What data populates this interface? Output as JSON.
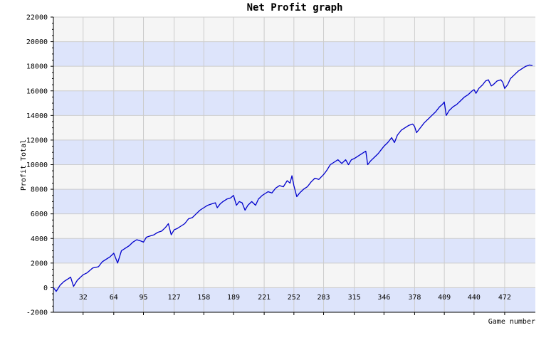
{
  "colors": {
    "band_a": "#dde4fb",
    "band_b": "#f5f5f5",
    "line": "#0000cc",
    "axis": "#000000",
    "grid": "#cccccc"
  },
  "chart_data": {
    "type": "line",
    "title": "Net Profit graph",
    "xlabel": "Game number",
    "ylabel": "Profit Total",
    "xlim": [
      1,
      504
    ],
    "ylim": [
      -2000,
      22000
    ],
    "x_ticks": [
      32,
      64,
      95,
      127,
      158,
      189,
      221,
      252,
      283,
      315,
      346,
      378,
      409,
      440,
      472
    ],
    "y_ticks": [
      -2000,
      0,
      2000,
      4000,
      6000,
      8000,
      10000,
      12000,
      14000,
      16000,
      18000,
      20000,
      22000
    ],
    "grid": true,
    "legend": "none",
    "series": [
      {
        "points": [
          [
            1,
            0
          ],
          [
            4,
            -300
          ],
          [
            8,
            200
          ],
          [
            12,
            500
          ],
          [
            16,
            700
          ],
          [
            19,
            850
          ],
          [
            22,
            100
          ],
          [
            26,
            600
          ],
          [
            32,
            1050
          ],
          [
            36,
            1200
          ],
          [
            42,
            1600
          ],
          [
            48,
            1700
          ],
          [
            52,
            2100
          ],
          [
            56,
            2300
          ],
          [
            60,
            2500
          ],
          [
            64,
            2800
          ],
          [
            68,
            2000
          ],
          [
            72,
            3000
          ],
          [
            76,
            3200
          ],
          [
            80,
            3400
          ],
          [
            84,
            3700
          ],
          [
            88,
            3900
          ],
          [
            92,
            3800
          ],
          [
            95,
            3700
          ],
          [
            98,
            4100
          ],
          [
            102,
            4200
          ],
          [
            106,
            4300
          ],
          [
            110,
            4500
          ],
          [
            114,
            4600
          ],
          [
            118,
            4900
          ],
          [
            121,
            5200
          ],
          [
            124,
            4300
          ],
          [
            127,
            4700
          ],
          [
            130,
            4800
          ],
          [
            134,
            5000
          ],
          [
            138,
            5200
          ],
          [
            142,
            5600
          ],
          [
            146,
            5700
          ],
          [
            150,
            6000
          ],
          [
            154,
            6300
          ],
          [
            158,
            6500
          ],
          [
            162,
            6700
          ],
          [
            166,
            6800
          ],
          [
            170,
            6900
          ],
          [
            172,
            6500
          ],
          [
            175,
            6800
          ],
          [
            178,
            7000
          ],
          [
            182,
            7200
          ],
          [
            186,
            7300
          ],
          [
            189,
            7500
          ],
          [
            192,
            6700
          ],
          [
            195,
            7000
          ],
          [
            198,
            6900
          ],
          [
            201,
            6300
          ],
          [
            204,
            6700
          ],
          [
            208,
            7000
          ],
          [
            212,
            6700
          ],
          [
            215,
            7200
          ],
          [
            219,
            7500
          ],
          [
            221,
            7600
          ],
          [
            225,
            7800
          ],
          [
            229,
            7700
          ],
          [
            233,
            8100
          ],
          [
            237,
            8300
          ],
          [
            241,
            8200
          ],
          [
            245,
            8700
          ],
          [
            248,
            8500
          ],
          [
            250,
            9100
          ],
          [
            252,
            8300
          ],
          [
            255,
            7400
          ],
          [
            258,
            7700
          ],
          [
            262,
            8000
          ],
          [
            266,
            8200
          ],
          [
            270,
            8600
          ],
          [
            274,
            8900
          ],
          [
            278,
            8800
          ],
          [
            283,
            9200
          ],
          [
            286,
            9500
          ],
          [
            290,
            10000
          ],
          [
            294,
            10200
          ],
          [
            298,
            10400
          ],
          [
            302,
            10100
          ],
          [
            306,
            10400
          ],
          [
            309,
            10000
          ],
          [
            312,
            10400
          ],
          [
            315,
            10500
          ],
          [
            319,
            10700
          ],
          [
            323,
            10900
          ],
          [
            327,
            11100
          ],
          [
            329,
            10000
          ],
          [
            332,
            10300
          ],
          [
            336,
            10600
          ],
          [
            340,
            10900
          ],
          [
            343,
            11200
          ],
          [
            346,
            11500
          ],
          [
            350,
            11800
          ],
          [
            354,
            12200
          ],
          [
            357,
            11800
          ],
          [
            360,
            12400
          ],
          [
            364,
            12800
          ],
          [
            368,
            13000
          ],
          [
            372,
            13200
          ],
          [
            376,
            13300
          ],
          [
            378,
            13100
          ],
          [
            380,
            12600
          ],
          [
            384,
            13000
          ],
          [
            388,
            13400
          ],
          [
            392,
            13700
          ],
          [
            396,
            14000
          ],
          [
            400,
            14300
          ],
          [
            404,
            14700
          ],
          [
            407,
            14900
          ],
          [
            409,
            15100
          ],
          [
            411,
            14000
          ],
          [
            414,
            14400
          ],
          [
            418,
            14700
          ],
          [
            422,
            14900
          ],
          [
            426,
            15200
          ],
          [
            430,
            15500
          ],
          [
            434,
            15700
          ],
          [
            438,
            16000
          ],
          [
            440,
            16100
          ],
          [
            442,
            15800
          ],
          [
            445,
            16200
          ],
          [
            449,
            16500
          ],
          [
            452,
            16800
          ],
          [
            455,
            16900
          ],
          [
            458,
            16400
          ],
          [
            460,
            16500
          ],
          [
            464,
            16800
          ],
          [
            468,
            16900
          ],
          [
            470,
            16700
          ],
          [
            472,
            16200
          ],
          [
            475,
            16500
          ],
          [
            478,
            17000
          ],
          [
            482,
            17300
          ],
          [
            486,
            17600
          ],
          [
            490,
            17800
          ],
          [
            494,
            18000
          ],
          [
            498,
            18100
          ],
          [
            501,
            18050
          ]
        ]
      }
    ]
  }
}
